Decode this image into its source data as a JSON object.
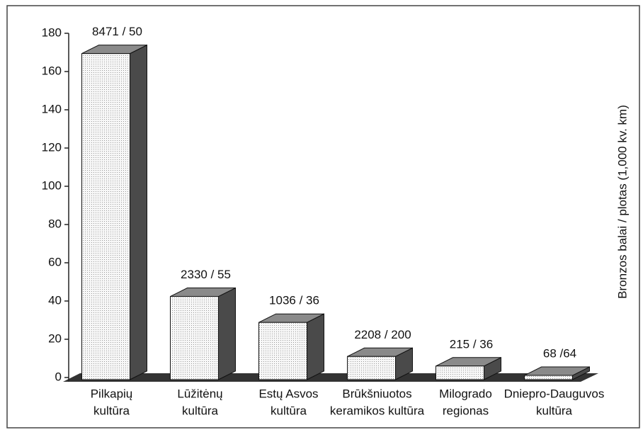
{
  "chart_data": {
    "type": "bar3d",
    "y_axis_label": "Bronzos balai / plotas (1,000 kv. km)",
    "categories": [
      [
        "Pilkapių",
        "kultūra"
      ],
      [
        "Lūžitėnų",
        "kultūra"
      ],
      [
        "Estų Asvos",
        "kultūra"
      ],
      [
        "Brūkšniuotos",
        "keramikos kultūra"
      ],
      [
        "Milogrado",
        "regionas"
      ],
      [
        "Dniepro-Dauguvos",
        "kultūra"
      ]
    ],
    "values": [
      169.4,
      42.4,
      28.8,
      11.0,
      6.0,
      1.1
    ],
    "value_labels": [
      "8471 / 50",
      "2330 / 55",
      "1036 / 36",
      "2208 / 200",
      "215 / 36",
      "68 /64"
    ],
    "color": "#f4f4f4",
    "ylim": [
      0,
      180
    ],
    "yticks": [
      0,
      20,
      40,
      60,
      80,
      100,
      120,
      140,
      160,
      180
    ]
  }
}
